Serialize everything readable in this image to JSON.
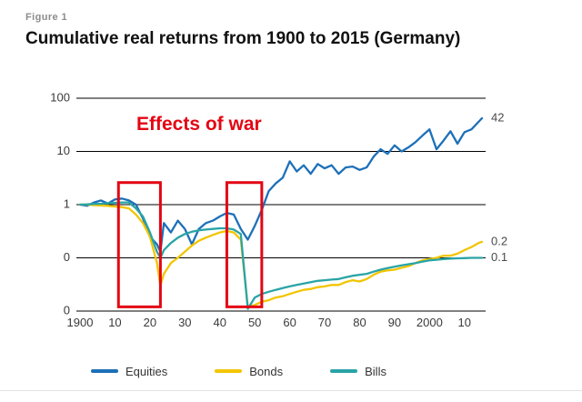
{
  "header": {
    "figure_label": "Figure 1",
    "title": "Cumulative real returns from 1900 to 2015 (Germany)"
  },
  "annotation": {
    "text": "Effects of war",
    "color": "#e30613"
  },
  "colors": {
    "grid": "#000000",
    "axis_text": "#3a3a3a",
    "end_label_text": "#4a4a4a",
    "war_box": "#e30613"
  },
  "chart_data": {
    "type": "line",
    "title": "Cumulative real returns from 1900 to 2015 (Germany)",
    "y_scale": "log",
    "xlim": [
      1900,
      2015
    ],
    "ylim": [
      0.01,
      100
    ],
    "grid": "horizontal-only",
    "legend_position": "bottom",
    "y_gridlines": [
      100,
      10,
      1,
      0.1,
      0.01
    ],
    "y_tick_labels": [
      "100",
      "10",
      "1",
      "0",
      "0"
    ],
    "x_ticks": [
      1900,
      1910,
      1920,
      1930,
      1940,
      1950,
      1960,
      1970,
      1980,
      1990,
      2000,
      2010
    ],
    "x_tick_labels": [
      "1900",
      "10",
      "20",
      "30",
      "40",
      "50",
      "60",
      "70",
      "80",
      "90",
      "2000",
      "10"
    ],
    "x": [
      1900,
      1902,
      1904,
      1906,
      1908,
      1910,
      1912,
      1914,
      1916,
      1918,
      1920,
      1922,
      1923,
      1924,
      1926,
      1928,
      1930,
      1932,
      1934,
      1936,
      1938,
      1940,
      1942,
      1944,
      1946,
      1948,
      1950,
      1952,
      1954,
      1956,
      1958,
      1960,
      1962,
      1964,
      1966,
      1968,
      1970,
      1972,
      1974,
      1976,
      1978,
      1980,
      1982,
      1984,
      1986,
      1988,
      1990,
      1992,
      1994,
      1996,
      1998,
      2000,
      2002,
      2004,
      2006,
      2008,
      2010,
      2012,
      2014,
      2015
    ],
    "series": [
      {
        "name": "Equities",
        "color": "#1d70b8",
        "end_label": "42",
        "values": [
          1.0,
          0.95,
          1.1,
          1.2,
          1.05,
          1.25,
          1.3,
          1.2,
          1.0,
          0.55,
          0.25,
          0.18,
          0.13,
          0.45,
          0.3,
          0.5,
          0.35,
          0.18,
          0.35,
          0.45,
          0.5,
          0.6,
          0.7,
          0.65,
          0.35,
          0.22,
          0.4,
          0.8,
          1.8,
          2.5,
          3.2,
          6.5,
          4.2,
          5.5,
          3.8,
          5.8,
          4.8,
          5.5,
          3.8,
          5.0,
          5.2,
          4.5,
          5.0,
          8.0,
          11,
          9,
          13,
          10,
          12,
          15,
          20,
          26,
          11,
          16,
          24,
          14,
          23,
          26,
          36,
          42
        ]
      },
      {
        "name": "Bonds",
        "color": "#f2c500",
        "end_label": "0.2",
        "values": [
          1.0,
          1.0,
          0.98,
          0.96,
          0.95,
          0.92,
          0.9,
          0.85,
          0.65,
          0.45,
          0.25,
          0.08,
          0.03,
          0.05,
          0.08,
          0.1,
          0.13,
          0.17,
          0.21,
          0.24,
          0.27,
          0.3,
          0.32,
          0.3,
          0.22,
          0.012,
          0.013,
          0.015,
          0.016,
          0.018,
          0.019,
          0.021,
          0.023,
          0.025,
          0.026,
          0.028,
          0.029,
          0.031,
          0.031,
          0.035,
          0.038,
          0.036,
          0.04,
          0.048,
          0.055,
          0.058,
          0.06,
          0.065,
          0.07,
          0.08,
          0.09,
          0.095,
          0.1,
          0.11,
          0.11,
          0.12,
          0.14,
          0.16,
          0.19,
          0.2
        ]
      },
      {
        "name": "Bills",
        "color": "#29a4a6",
        "end_label": "0.1",
        "values": [
          1.0,
          1.01,
          1.03,
          1.04,
          1.06,
          1.08,
          1.1,
          1.1,
          0.85,
          0.6,
          0.3,
          0.13,
          0.1,
          0.14,
          0.19,
          0.24,
          0.28,
          0.31,
          0.33,
          0.34,
          0.35,
          0.36,
          0.36,
          0.34,
          0.28,
          0.011,
          0.018,
          0.021,
          0.023,
          0.025,
          0.027,
          0.029,
          0.031,
          0.033,
          0.035,
          0.037,
          0.038,
          0.039,
          0.04,
          0.043,
          0.046,
          0.048,
          0.05,
          0.055,
          0.06,
          0.064,
          0.068,
          0.072,
          0.076,
          0.08,
          0.085,
          0.09,
          0.092,
          0.095,
          0.097,
          0.098,
          0.099,
          0.1,
          0.1,
          0.1
        ]
      }
    ],
    "war_boxes": [
      {
        "x1": 1911,
        "x2": 1923,
        "top": 2.6,
        "bottom": 0.012
      },
      {
        "x1": 1942,
        "x2": 1952,
        "top": 2.6,
        "bottom": 0.012
      }
    ]
  }
}
